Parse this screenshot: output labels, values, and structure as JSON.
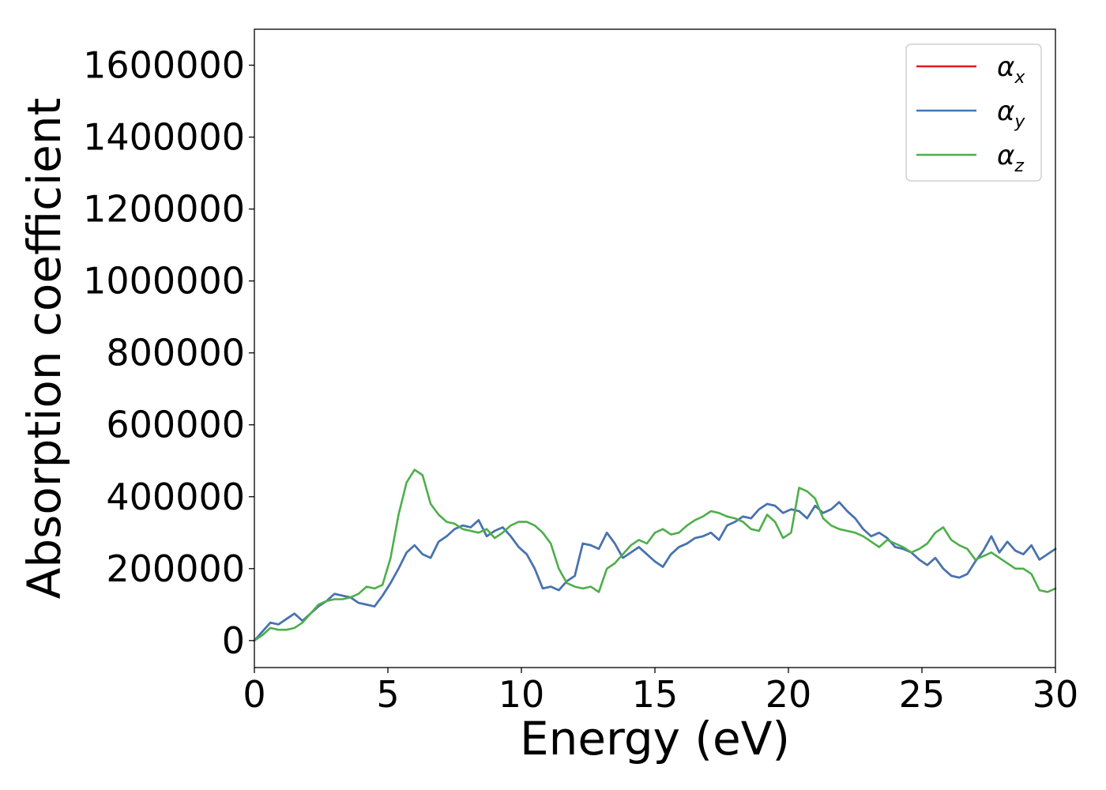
{
  "chart_data": {
    "type": "line",
    "title": "",
    "xlabel": "Energy (eV)",
    "ylabel": "Absorption coefficient",
    "xlim": [
      0,
      30
    ],
    "ylim": [
      -75000,
      1700000
    ],
    "xticks": [
      0,
      5,
      10,
      15,
      20,
      25,
      30
    ],
    "xtick_labels": [
      "0",
      "5",
      "10",
      "15",
      "20",
      "25",
      "30"
    ],
    "yticks": [
      0,
      200000,
      400000,
      600000,
      800000,
      1000000,
      1200000,
      1400000,
      1600000
    ],
    "ytick_labels": [
      "0",
      "200000",
      "400000",
      "600000",
      "800000",
      "1000000",
      "1200000",
      "1400000",
      "1600000"
    ],
    "grid": false,
    "legend": {
      "placement": "top-right"
    },
    "series": [
      {
        "name": "αx",
        "base": "α",
        "sub": "x",
        "color": "#e41a1c",
        "x": [
          0,
          0.3,
          0.6,
          0.9,
          1.2,
          1.5,
          1.8,
          2.1,
          2.4,
          2.7,
          3.0,
          3.3,
          3.6,
          3.9,
          4.2,
          4.5,
          4.8,
          5.1,
          5.4,
          5.7,
          6.0,
          6.3,
          6.6,
          6.9,
          7.2,
          7.5,
          7.8,
          8.1,
          8.4,
          8.7,
          9.0,
          9.3,
          9.6,
          9.9,
          10.2,
          10.5,
          10.8,
          11.1,
          11.4,
          11.7,
          12.0,
          12.3,
          12.6,
          12.9,
          13.2,
          13.5,
          13.8,
          14.1,
          14.4,
          14.7,
          15.0,
          15.3,
          15.6,
          15.9,
          16.2,
          16.5,
          16.8,
          17.1,
          17.4,
          17.7,
          18.0,
          18.3,
          18.6,
          18.9,
          19.2,
          19.5,
          19.8,
          20.1,
          20.4,
          20.7,
          21.0,
          21.3,
          21.6,
          21.9,
          22.2,
          22.5,
          22.8,
          23.1,
          23.4,
          23.7,
          24.0,
          24.3,
          24.6,
          24.9,
          25.2,
          25.5,
          25.8,
          26.1,
          26.4,
          26.7,
          27.0,
          27.3,
          27.6,
          27.9,
          28.2,
          28.5,
          28.8,
          29.1,
          29.4,
          29.7,
          30.0
        ],
        "y": [
          0,
          25000,
          50000,
          45000,
          60000,
          75000,
          55000,
          75000,
          95000,
          110000,
          130000,
          125000,
          120000,
          105000,
          100000,
          95000,
          125000,
          160000,
          200000,
          245000,
          265000,
          240000,
          230000,
          275000,
          290000,
          310000,
          320000,
          315000,
          335000,
          290000,
          305000,
          315000,
          290000,
          260000,
          240000,
          200000,
          145000,
          150000,
          140000,
          165000,
          180000,
          270000,
          265000,
          255000,
          300000,
          270000,
          230000,
          245000,
          260000,
          240000,
          220000,
          205000,
          240000,
          260000,
          270000,
          285000,
          290000,
          300000,
          280000,
          320000,
          330000,
          345000,
          340000,
          365000,
          380000,
          375000,
          355000,
          365000,
          360000,
          340000,
          375000,
          355000,
          365000,
          385000,
          360000,
          340000,
          310000,
          290000,
          300000,
          285000,
          260000,
          255000,
          245000,
          225000,
          210000,
          230000,
          200000,
          180000,
          175000,
          185000,
          220000,
          250000,
          290000,
          245000,
          275000,
          250000,
          240000,
          265000,
          225000,
          240000,
          255000
        ]
      },
      {
        "name": "αy",
        "base": "α",
        "sub": "y",
        "color": "#3f77b5",
        "x": [
          0,
          0.3,
          0.6,
          0.9,
          1.2,
          1.5,
          1.8,
          2.1,
          2.4,
          2.7,
          3.0,
          3.3,
          3.6,
          3.9,
          4.2,
          4.5,
          4.8,
          5.1,
          5.4,
          5.7,
          6.0,
          6.3,
          6.6,
          6.9,
          7.2,
          7.5,
          7.8,
          8.1,
          8.4,
          8.7,
          9.0,
          9.3,
          9.6,
          9.9,
          10.2,
          10.5,
          10.8,
          11.1,
          11.4,
          11.7,
          12.0,
          12.3,
          12.6,
          12.9,
          13.2,
          13.5,
          13.8,
          14.1,
          14.4,
          14.7,
          15.0,
          15.3,
          15.6,
          15.9,
          16.2,
          16.5,
          16.8,
          17.1,
          17.4,
          17.7,
          18.0,
          18.3,
          18.6,
          18.9,
          19.2,
          19.5,
          19.8,
          20.1,
          20.4,
          20.7,
          21.0,
          21.3,
          21.6,
          21.9,
          22.2,
          22.5,
          22.8,
          23.1,
          23.4,
          23.7,
          24.0,
          24.3,
          24.6,
          24.9,
          25.2,
          25.5,
          25.8,
          26.1,
          26.4,
          26.7,
          27.0,
          27.3,
          27.6,
          27.9,
          28.2,
          28.5,
          28.8,
          29.1,
          29.4,
          29.7,
          30.0
        ],
        "y": [
          0,
          25000,
          50000,
          45000,
          60000,
          75000,
          55000,
          75000,
          95000,
          110000,
          130000,
          125000,
          120000,
          105000,
          100000,
          95000,
          125000,
          160000,
          200000,
          245000,
          265000,
          240000,
          230000,
          275000,
          290000,
          310000,
          320000,
          315000,
          335000,
          290000,
          305000,
          315000,
          290000,
          260000,
          240000,
          200000,
          145000,
          150000,
          140000,
          165000,
          180000,
          270000,
          265000,
          255000,
          300000,
          270000,
          230000,
          245000,
          260000,
          240000,
          220000,
          205000,
          240000,
          260000,
          270000,
          285000,
          290000,
          300000,
          280000,
          320000,
          330000,
          345000,
          340000,
          365000,
          380000,
          375000,
          355000,
          365000,
          360000,
          340000,
          375000,
          355000,
          365000,
          385000,
          360000,
          340000,
          310000,
          290000,
          300000,
          285000,
          260000,
          255000,
          245000,
          225000,
          210000,
          230000,
          200000,
          180000,
          175000,
          185000,
          220000,
          250000,
          290000,
          245000,
          275000,
          250000,
          240000,
          265000,
          225000,
          240000,
          255000
        ]
      },
      {
        "name": "αz",
        "base": "α",
        "sub": "z",
        "color": "#4daf4a",
        "x": [
          0,
          0.3,
          0.6,
          0.9,
          1.2,
          1.5,
          1.8,
          2.1,
          2.4,
          2.7,
          3.0,
          3.3,
          3.6,
          3.9,
          4.2,
          4.5,
          4.8,
          5.1,
          5.4,
          5.7,
          6.0,
          6.3,
          6.6,
          6.9,
          7.2,
          7.5,
          7.8,
          8.1,
          8.4,
          8.7,
          9.0,
          9.3,
          9.6,
          9.9,
          10.2,
          10.5,
          10.8,
          11.1,
          11.4,
          11.7,
          12.0,
          12.3,
          12.6,
          12.9,
          13.2,
          13.5,
          13.8,
          14.1,
          14.4,
          14.7,
          15.0,
          15.3,
          15.6,
          15.9,
          16.2,
          16.5,
          16.8,
          17.1,
          17.4,
          17.7,
          18.0,
          18.3,
          18.6,
          18.9,
          19.2,
          19.5,
          19.8,
          20.1,
          20.4,
          20.7,
          21.0,
          21.3,
          21.6,
          21.9,
          22.2,
          22.5,
          22.8,
          23.1,
          23.4,
          23.7,
          24.0,
          24.3,
          24.6,
          24.9,
          25.2,
          25.5,
          25.8,
          26.1,
          26.4,
          26.7,
          27.0,
          27.3,
          27.6,
          27.9,
          28.2,
          28.5,
          28.8,
          29.1,
          29.4,
          29.7,
          30.0
        ],
        "y": [
          0,
          15000,
          35000,
          30000,
          30000,
          35000,
          50000,
          75000,
          100000,
          110000,
          115000,
          115000,
          120000,
          130000,
          150000,
          145000,
          155000,
          230000,
          350000,
          440000,
          475000,
          460000,
          380000,
          350000,
          330000,
          325000,
          310000,
          305000,
          300000,
          310000,
          285000,
          300000,
          320000,
          330000,
          330000,
          320000,
          300000,
          270000,
          200000,
          160000,
          150000,
          145000,
          150000,
          135000,
          200000,
          215000,
          240000,
          265000,
          280000,
          270000,
          300000,
          310000,
          295000,
          300000,
          320000,
          335000,
          345000,
          360000,
          355000,
          345000,
          340000,
          330000,
          310000,
          305000,
          350000,
          330000,
          285000,
          300000,
          425000,
          415000,
          395000,
          340000,
          320000,
          310000,
          305000,
          300000,
          290000,
          275000,
          260000,
          280000,
          270000,
          260000,
          245000,
          255000,
          270000,
          300000,
          315000,
          280000,
          265000,
          255000,
          225000,
          235000,
          245000,
          230000,
          215000,
          200000,
          200000,
          185000,
          140000,
          135000,
          145000
        ]
      }
    ]
  }
}
